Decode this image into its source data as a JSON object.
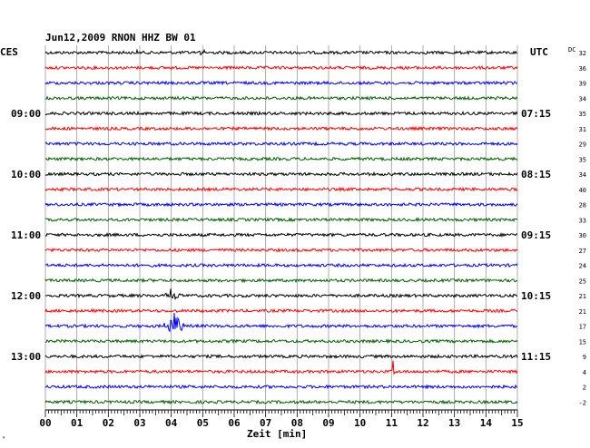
{
  "chart_data": {
    "type": "line",
    "title": "Jun12,2009   RNON HHZ BW 01",
    "left_timezone": "CES",
    "right_timezone": "UTC",
    "dc_header": "DC",
    "xlabel": "Zeit [min]",
    "x_ticks": [
      "00",
      "01",
      "02",
      "03",
      "04",
      "05",
      "06",
      "07",
      "08",
      "09",
      "10",
      "11",
      "12",
      "13",
      "14",
      "15"
    ],
    "xlim": [
      0,
      15
    ],
    "trace_colors": [
      "#000000",
      "#ff0000",
      "#0000ff",
      "#006400"
    ],
    "left_hour_labels": [
      "09:00",
      "10:00",
      "11:00",
      "12:00",
      "13:00"
    ],
    "right_hour_labels": [
      "07:15",
      "08:15",
      "09:15",
      "10:15",
      "11:15"
    ],
    "dc_values": [
      "32",
      "36",
      "39",
      "34",
      "35",
      "31",
      "29",
      "35",
      "34",
      "40",
      "28",
      "33",
      "30",
      "27",
      "24",
      "25",
      "21",
      "21",
      "17",
      "15",
      "9",
      "4",
      "2",
      "-2"
    ],
    "events": [
      {
        "trace": 0,
        "minute": 4.9,
        "amplitude": 6,
        "width": 0.2
      },
      {
        "trace": 0,
        "minute": 2.9,
        "amplitude": 3,
        "width": 0.1
      },
      {
        "trace": 4,
        "minute": 14.8,
        "amplitude": 10,
        "width": 0.08
      },
      {
        "trace": 16,
        "minute": 4.0,
        "amplitude": 7,
        "width": 0.35
      },
      {
        "trace": 18,
        "minute": 4.1,
        "amplitude": 14,
        "width": 0.4
      },
      {
        "trace": 21,
        "minute": 11.05,
        "amplitude": 16,
        "width": 0.05
      }
    ]
  },
  "corner_mark": "ᴬ"
}
